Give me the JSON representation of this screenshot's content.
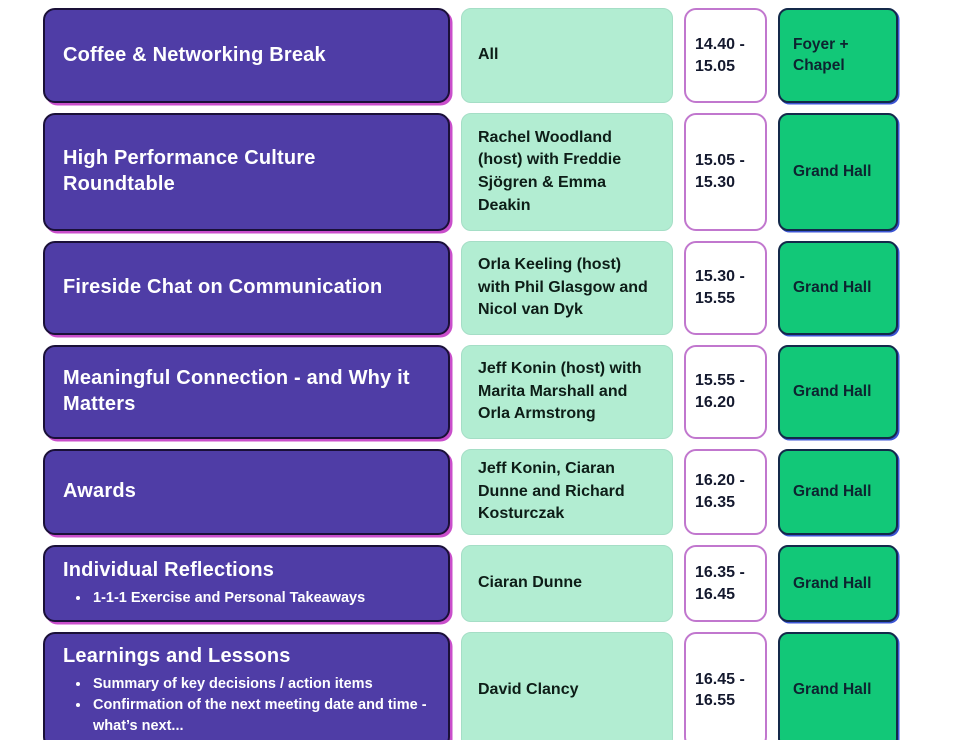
{
  "colors": {
    "session_bg": "#4f3da6",
    "session_border": "#1a1038",
    "session_glow": "#c94ecb",
    "session_text": "#ffffff",
    "speaker_bg": "#b2edd2",
    "speaker_border": "#a5dec6",
    "speaker_text": "#0d1d17",
    "time_bg": "#ffffff",
    "time_border": "#c177ce",
    "time_text": "#14192e",
    "location_bg": "#12c878",
    "location_border": "#14294a",
    "location_edge": "#3c55d4",
    "location_text": "#0d2430"
  },
  "schedule": {
    "rows": [
      {
        "session": "Coffee & Networking Break",
        "bullets": [],
        "speakers": "All",
        "time": "14.40 - 15.05",
        "location": "Foyer + Chapel"
      },
      {
        "session": "High Performance Culture Roundtable",
        "bullets": [],
        "speakers": "Rachel Woodland (host) with Freddie Sjögren & Emma Deakin",
        "time": "15.05 - 15.30",
        "location": "Grand Hall"
      },
      {
        "session": "Fireside Chat on Communication",
        "bullets": [],
        "speakers": "Orla Keeling (host) with Phil Glasgow and Nicol van Dyk",
        "time": "15.30 - 15.55",
        "location": "Grand Hall"
      },
      {
        "session": "Meaningful Connection - and Why it Matters",
        "bullets": [],
        "speakers": "Jeff Konin (host) with Marita Marshall and Orla Armstrong",
        "time": "15.55 - 16.20",
        "location": "Grand Hall"
      },
      {
        "session": "Awards",
        "bullets": [],
        "speakers": "Jeff Konin, Ciaran Dunne and Richard Kosturczak",
        "time": "16.20 - 16.35",
        "location": "Grand Hall"
      },
      {
        "session": "Individual Reflections",
        "bullets": [
          "1-1-1 Exercise and Personal Takeaways"
        ],
        "speakers": "Ciaran Dunne",
        "time": "16.35 - 16.45",
        "location": "Grand Hall"
      },
      {
        "session": "Learnings and Lessons",
        "bullets": [
          "Summary of key decisions / action items",
          "Confirmation of the next meeting date and time - what’s next..."
        ],
        "speakers": "David Clancy",
        "time": "16.45 - 16.55",
        "location": "Grand Hall"
      }
    ]
  }
}
